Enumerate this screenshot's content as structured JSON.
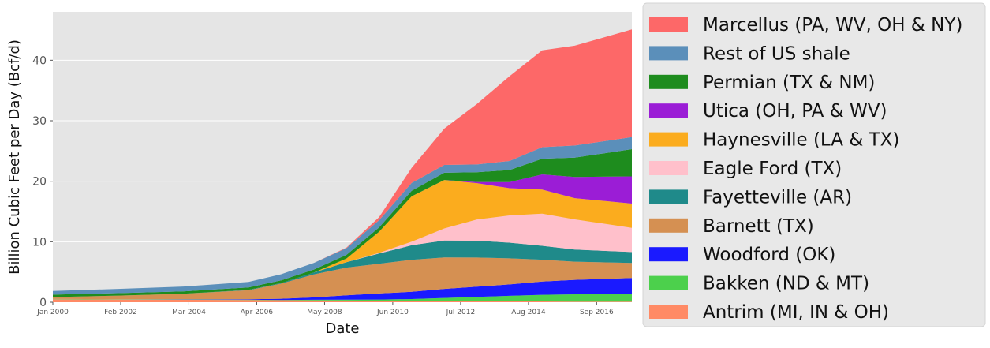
{
  "chart_data": {
    "type": "area",
    "stacked": true,
    "xlabel": "Date",
    "ylabel": "Billion Cubic Feet per Day (Bcf/d)",
    "ylim": [
      0,
      48
    ],
    "xlim": [
      2000.0,
      2017.75
    ],
    "yticks": [
      0,
      10,
      20,
      30,
      40
    ],
    "xticks": [
      {
        "label": "Jan 2000",
        "x": 2000.0
      },
      {
        "label": "Feb 2002",
        "x": 2002.08
      },
      {
        "label": "Mar 2004",
        "x": 2004.17
      },
      {
        "label": "Apr 2006",
        "x": 2006.25
      },
      {
        "label": "May 2008",
        "x": 2008.33
      },
      {
        "label": "Jun 2010",
        "x": 2010.42
      },
      {
        "label": "Jul 2012",
        "x": 2012.5
      },
      {
        "label": "Aug 2014",
        "x": 2014.58
      },
      {
        "label": "Sep 2016",
        "x": 2016.67
      }
    ],
    "grid": true,
    "legend_position": "right",
    "x": [
      2000,
      2002,
      2004,
      2006,
      2007,
      2008,
      2009,
      2010,
      2011,
      2012,
      2013,
      2014,
      2015,
      2016,
      2017.75
    ],
    "series": [
      {
        "name": "Antrim (MI, IN & OH)",
        "color": "#ff8a65",
        "values": [
          0.5,
          0.45,
          0.4,
          0.35,
          0.33,
          0.3,
          0.28,
          0.25,
          0.22,
          0.2,
          0.18,
          0.15,
          0.13,
          0.1,
          0.1
        ]
      },
      {
        "name": "Bakken (ND & MT)",
        "color": "#4cd04c",
        "values": [
          0.05,
          0.05,
          0.05,
          0.05,
          0.05,
          0.1,
          0.15,
          0.2,
          0.3,
          0.5,
          0.7,
          0.9,
          1.1,
          1.2,
          1.3
        ]
      },
      {
        "name": "Woodford (OK)",
        "color": "#1a1aff",
        "values": [
          0.0,
          0.0,
          0.05,
          0.1,
          0.2,
          0.4,
          0.7,
          1.0,
          1.2,
          1.5,
          1.7,
          1.9,
          2.2,
          2.4,
          2.6
        ]
      },
      {
        "name": "Barnett (TX)",
        "color": "#d59052",
        "values": [
          0.3,
          0.6,
          0.9,
          1.5,
          2.5,
          3.8,
          4.6,
          4.9,
          5.3,
          5.2,
          4.8,
          4.3,
          3.6,
          3.0,
          2.5
        ]
      },
      {
        "name": "Fayetteville (AR)",
        "color": "#1f8a8a",
        "values": [
          0.0,
          0.0,
          0.0,
          0.05,
          0.1,
          0.3,
          0.9,
          1.7,
          2.4,
          2.8,
          2.8,
          2.6,
          2.3,
          2.0,
          1.8
        ]
      },
      {
        "name": "Eagle Ford (TX)",
        "color": "#ffc0cb",
        "values": [
          0.0,
          0.0,
          0.0,
          0.0,
          0.0,
          0.0,
          0.0,
          0.1,
          0.6,
          2.0,
          3.5,
          4.5,
          5.3,
          5.0,
          4.0
        ]
      },
      {
        "name": "Haynesville (LA & TX)",
        "color": "#fbac1e",
        "values": [
          0.0,
          0.0,
          0.0,
          0.0,
          0.0,
          0.0,
          0.6,
          3.5,
          7.5,
          8.0,
          6.0,
          4.5,
          4.0,
          3.5,
          4.0
        ]
      },
      {
        "name": "Utica (OH, PA & WV)",
        "color": "#9b1dd6",
        "values": [
          0.0,
          0.0,
          0.0,
          0.0,
          0.0,
          0.0,
          0.0,
          0.0,
          0.0,
          0.0,
          0.2,
          1.0,
          2.5,
          3.5,
          4.5
        ]
      },
      {
        "name": "Permian (TX & NM)",
        "color": "#1e8c1e",
        "values": [
          0.4,
          0.4,
          0.4,
          0.4,
          0.45,
          0.5,
          0.6,
          0.7,
          0.9,
          1.2,
          1.6,
          2.0,
          2.6,
          3.2,
          4.5
        ]
      },
      {
        "name": "Rest of US shale",
        "color": "#5b8fba",
        "values": [
          0.6,
          0.7,
          0.8,
          0.9,
          1.0,
          1.1,
          1.1,
          1.2,
          1.3,
          1.3,
          1.3,
          1.5,
          1.9,
          2.0,
          2.0
        ]
      },
      {
        "name": "Marcellus (PA, WV, OH & NY)",
        "color": "#fd6868",
        "values": [
          0.0,
          0.0,
          0.0,
          0.0,
          0.0,
          0.0,
          0.1,
          0.5,
          2.5,
          6.0,
          10.0,
          14.0,
          16.0,
          16.5,
          17.8
        ]
      }
    ]
  }
}
